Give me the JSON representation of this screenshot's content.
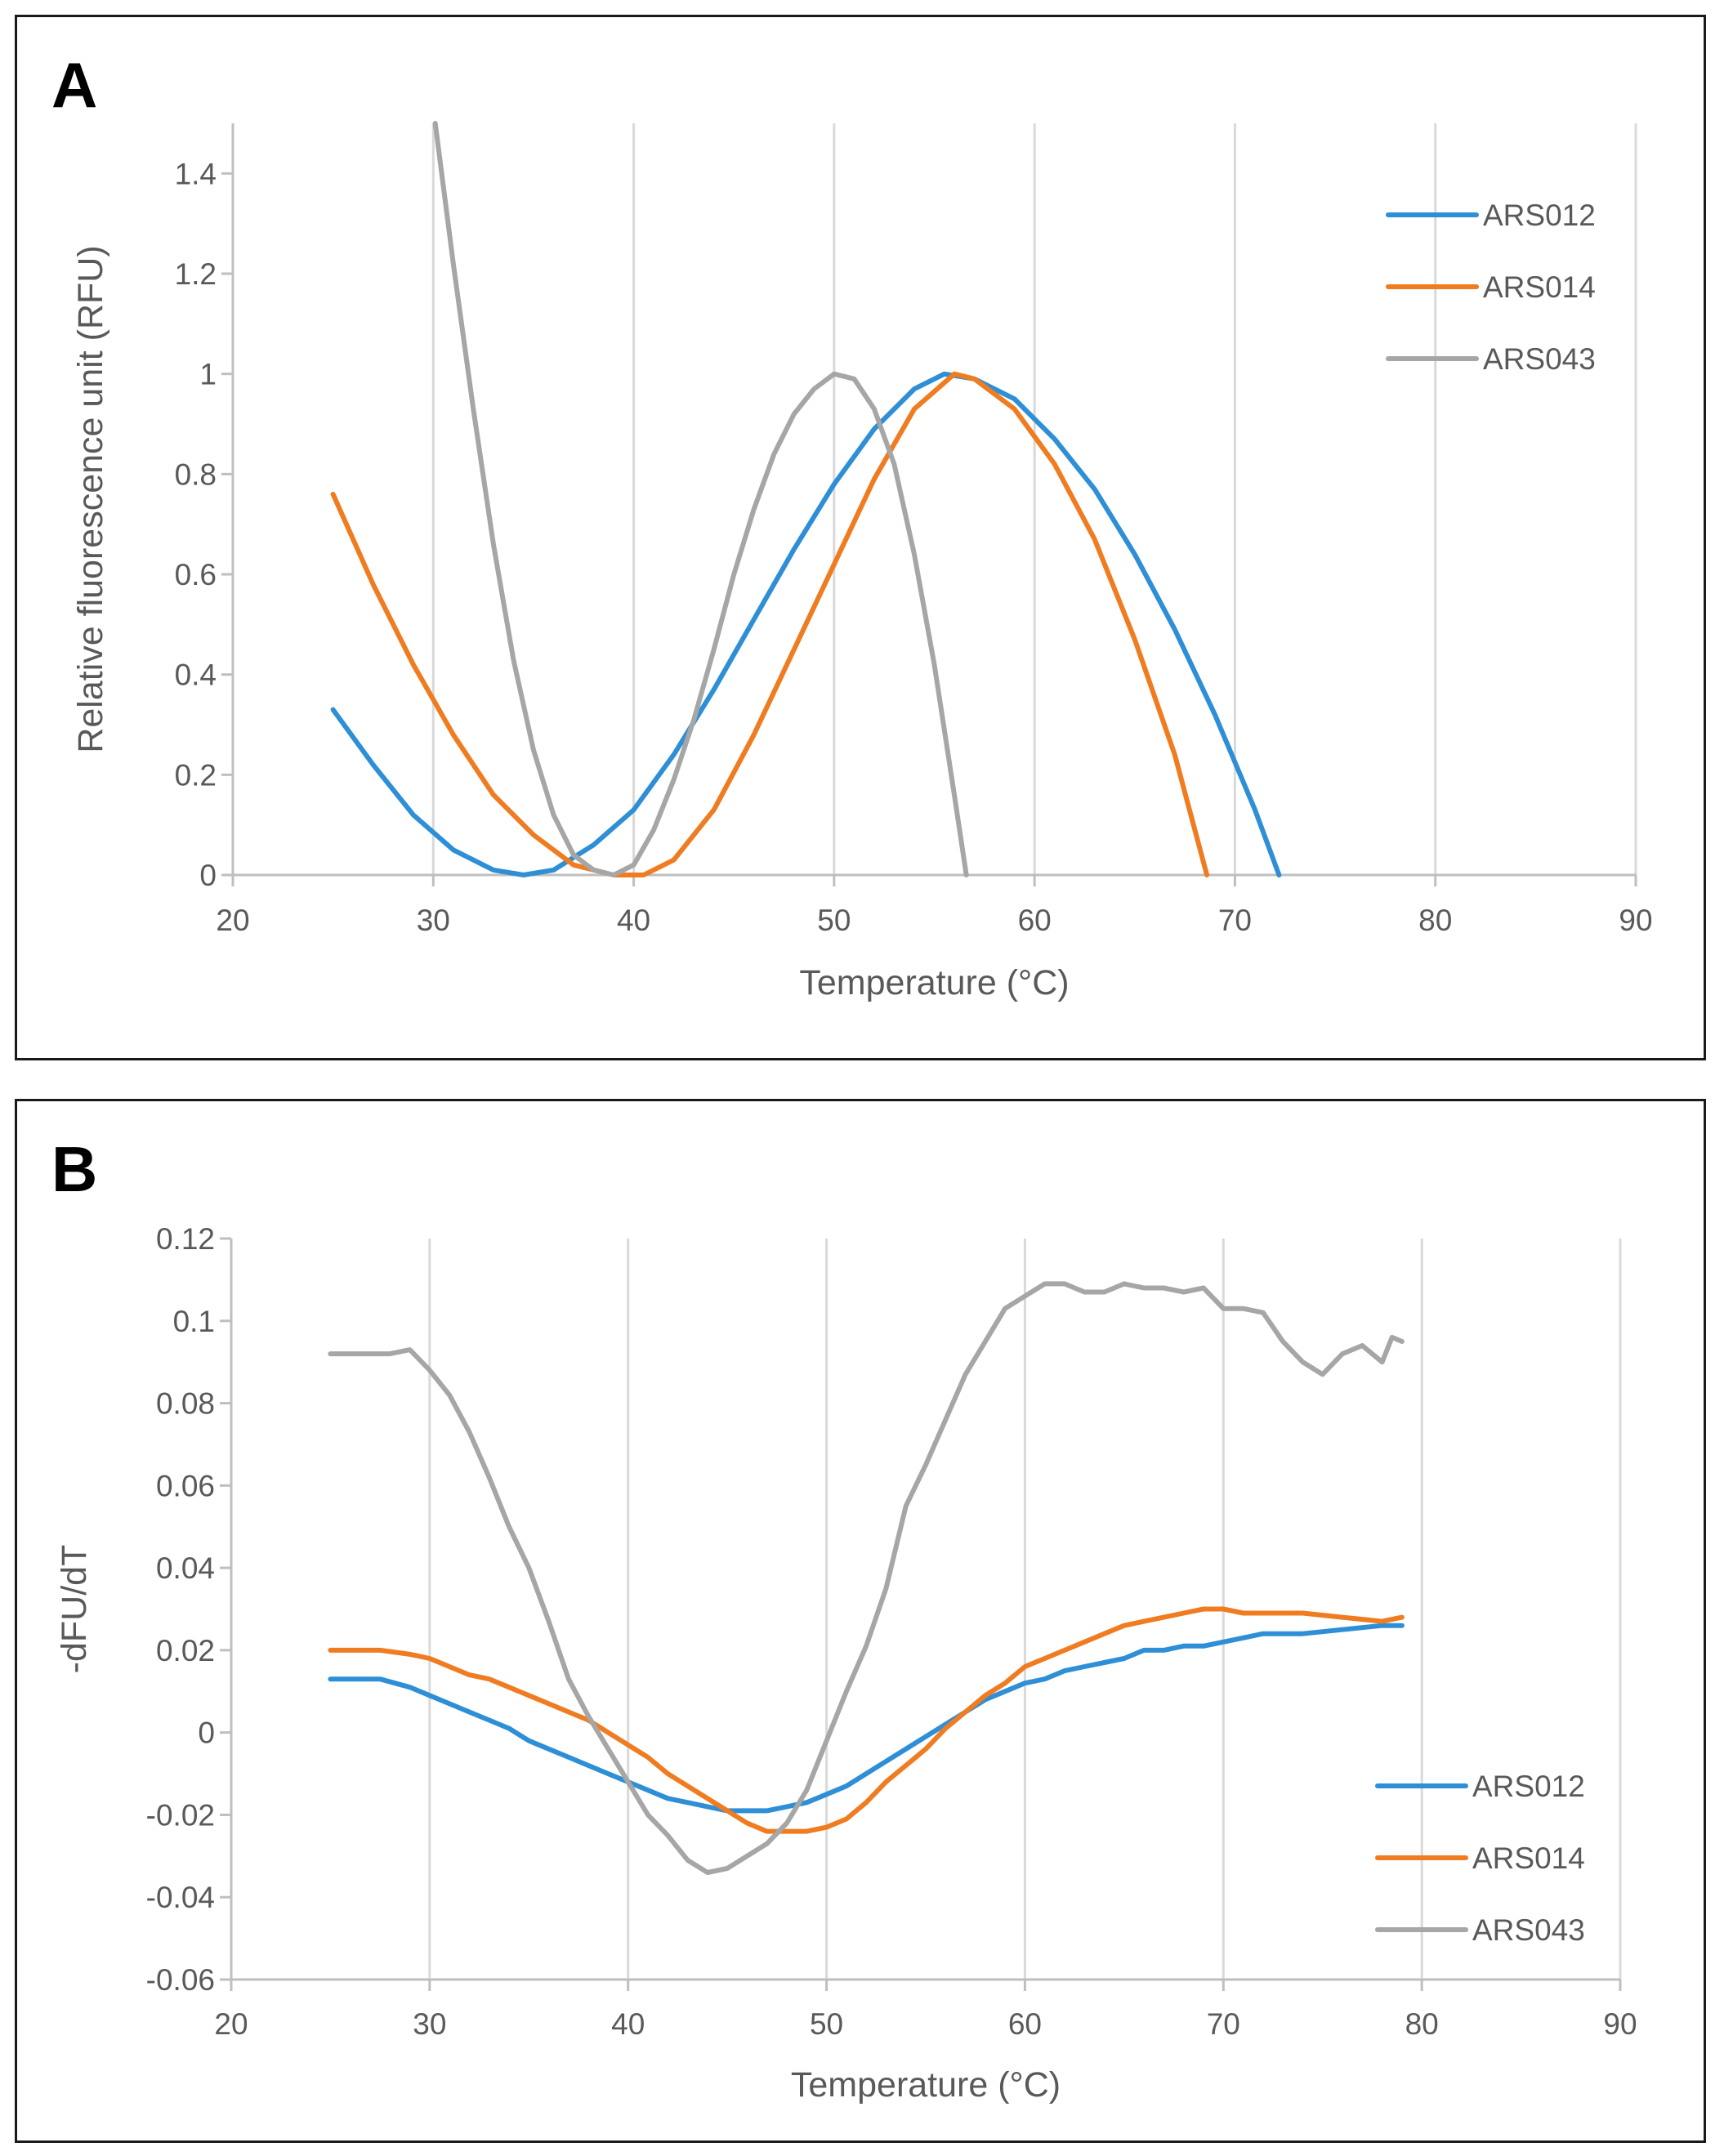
{
  "chart_data": [
    {
      "panel": "A",
      "type": "line",
      "title": "",
      "xlabel": "Temperature (°C)",
      "ylabel": "Relative fluorescence unit (RFU)",
      "xlim": [
        20,
        90
      ],
      "ylim": [
        0,
        1.5
      ],
      "xticks": [
        20,
        30,
        40,
        50,
        60,
        70,
        80,
        90
      ],
      "yticks": [
        0,
        0.2,
        0.4,
        0.6,
        0.8,
        1,
        1.2,
        1.4
      ],
      "grid": "vertical",
      "legend_position": "top-right",
      "series": [
        {
          "name": "ARS012",
          "color": "#2e8fd6",
          "points": [
            [
              25,
              0.33
            ],
            [
              27,
              0.22
            ],
            [
              29,
              0.12
            ],
            [
              31,
              0.05
            ],
            [
              33,
              0.01
            ],
            [
              34.5,
              0
            ],
            [
              36,
              0.01
            ],
            [
              38,
              0.06
            ],
            [
              40,
              0.13
            ],
            [
              42,
              0.24
            ],
            [
              44,
              0.37
            ],
            [
              46,
              0.51
            ],
            [
              48,
              0.65
            ],
            [
              50,
              0.78
            ],
            [
              52,
              0.89
            ],
            [
              54,
              0.97
            ],
            [
              55.5,
              1.0
            ],
            [
              57,
              0.99
            ],
            [
              59,
              0.95
            ],
            [
              61,
              0.87
            ],
            [
              63,
              0.77
            ],
            [
              65,
              0.64
            ],
            [
              67,
              0.49
            ],
            [
              69,
              0.32
            ],
            [
              71,
              0.13
            ],
            [
              72.2,
              0
            ]
          ]
        },
        {
          "name": "ARS014",
          "color": "#f07c21",
          "points": [
            [
              25,
              0.76
            ],
            [
              27,
              0.58
            ],
            [
              29,
              0.42
            ],
            [
              31,
              0.28
            ],
            [
              33,
              0.16
            ],
            [
              35,
              0.08
            ],
            [
              37,
              0.02
            ],
            [
              39,
              0
            ],
            [
              40.5,
              0
            ],
            [
              42,
              0.03
            ],
            [
              44,
              0.13
            ],
            [
              46,
              0.28
            ],
            [
              48,
              0.45
            ],
            [
              50,
              0.62
            ],
            [
              52,
              0.79
            ],
            [
              54,
              0.93
            ],
            [
              56,
              1.0
            ],
            [
              57,
              0.99
            ],
            [
              59,
              0.93
            ],
            [
              61,
              0.82
            ],
            [
              63,
              0.67
            ],
            [
              65,
              0.47
            ],
            [
              67,
              0.24
            ],
            [
              68.6,
              0
            ]
          ]
        },
        {
          "name": "ARS043",
          "color": "#a6a6a6",
          "points": [
            [
              30.1,
              1.5
            ],
            [
              31,
              1.22
            ],
            [
              32,
              0.93
            ],
            [
              33,
              0.66
            ],
            [
              34,
              0.43
            ],
            [
              35,
              0.25
            ],
            [
              36,
              0.12
            ],
            [
              37,
              0.04
            ],
            [
              38,
              0.01
            ],
            [
              39,
              0
            ],
            [
              40,
              0.02
            ],
            [
              41,
              0.09
            ],
            [
              42,
              0.19
            ],
            [
              43,
              0.31
            ],
            [
              44,
              0.45
            ],
            [
              45,
              0.6
            ],
            [
              46,
              0.73
            ],
            [
              47,
              0.84
            ],
            [
              48,
              0.92
            ],
            [
              49,
              0.97
            ],
            [
              50,
              1.0
            ],
            [
              51,
              0.99
            ],
            [
              52,
              0.93
            ],
            [
              53,
              0.82
            ],
            [
              54,
              0.64
            ],
            [
              55,
              0.42
            ],
            [
              56,
              0.16
            ],
            [
              56.6,
              0
            ]
          ]
        }
      ]
    },
    {
      "panel": "B",
      "type": "line",
      "title": "",
      "xlabel": "Temperature (°C)",
      "ylabel": "-dFU/dT",
      "xlim": [
        20,
        90
      ],
      "ylim": [
        -0.06,
        0.12
      ],
      "xticks": [
        20,
        30,
        40,
        50,
        60,
        70,
        80,
        90
      ],
      "yticks": [
        -0.06,
        -0.04,
        -0.02,
        0,
        0.02,
        0.04,
        0.06,
        0.08,
        0.1,
        0.12
      ],
      "grid": "vertical",
      "legend_position": "bottom-right",
      "series": [
        {
          "name": "ARS012",
          "color": "#2e8fd6",
          "points": [
            [
              25,
              0.013
            ],
            [
              27.5,
              0.013
            ],
            [
              29,
              0.011
            ],
            [
              30,
              0.009
            ],
            [
              31,
              0.007
            ],
            [
              32,
              0.005
            ],
            [
              33,
              0.003
            ],
            [
              34,
              0.001
            ],
            [
              35,
              -0.002
            ],
            [
              36,
              -0.004
            ],
            [
              37,
              -0.006
            ],
            [
              38,
              -0.008
            ],
            [
              39,
              -0.01
            ],
            [
              40,
              -0.012
            ],
            [
              41,
              -0.014
            ],
            [
              42,
              -0.016
            ],
            [
              43,
              -0.017
            ],
            [
              44,
              -0.018
            ],
            [
              45,
              -0.019
            ],
            [
              46,
              -0.019
            ],
            [
              47,
              -0.019
            ],
            [
              48,
              -0.018
            ],
            [
              49,
              -0.017
            ],
            [
              50,
              -0.015
            ],
            [
              51,
              -0.013
            ],
            [
              52,
              -0.01
            ],
            [
              53,
              -0.007
            ],
            [
              54,
              -0.004
            ],
            [
              55,
              -0.001
            ],
            [
              56,
              0.002
            ],
            [
              57,
              0.005
            ],
            [
              58,
              0.008
            ],
            [
              59,
              0.01
            ],
            [
              60,
              0.012
            ],
            [
              61,
              0.013
            ],
            [
              62,
              0.015
            ],
            [
              63,
              0.016
            ],
            [
              64,
              0.017
            ],
            [
              65,
              0.018
            ],
            [
              66,
              0.02
            ],
            [
              67,
              0.02
            ],
            [
              68,
              0.021
            ],
            [
              69,
              0.021
            ],
            [
              70,
              0.022
            ],
            [
              71,
              0.023
            ],
            [
              72,
              0.024
            ],
            [
              74,
              0.024
            ],
            [
              76,
              0.025
            ],
            [
              78,
              0.026
            ],
            [
              79,
              0.026
            ]
          ]
        },
        {
          "name": "ARS014",
          "color": "#f07c21",
          "points": [
            [
              25,
              0.02
            ],
            [
              27.5,
              0.02
            ],
            [
              29,
              0.019
            ],
            [
              30,
              0.018
            ],
            [
              31,
              0.016
            ],
            [
              32,
              0.014
            ],
            [
              33,
              0.013
            ],
            [
              34,
              0.011
            ],
            [
              35,
              0.009
            ],
            [
              36,
              0.007
            ],
            [
              37,
              0.005
            ],
            [
              38,
              0.003
            ],
            [
              39,
              0
            ],
            [
              40,
              -0.003
            ],
            [
              41,
              -0.006
            ],
            [
              42,
              -0.01
            ],
            [
              43,
              -0.013
            ],
            [
              44,
              -0.016
            ],
            [
              45,
              -0.019
            ],
            [
              46,
              -0.022
            ],
            [
              47,
              -0.024
            ],
            [
              48,
              -0.024
            ],
            [
              49,
              -0.024
            ],
            [
              50,
              -0.023
            ],
            [
              51,
              -0.021
            ],
            [
              52,
              -0.017
            ],
            [
              53,
              -0.012
            ],
            [
              54,
              -0.008
            ],
            [
              55,
              -0.004
            ],
            [
              56,
              0.001
            ],
            [
              57,
              0.005
            ],
            [
              58,
              0.009
            ],
            [
              59,
              0.012
            ],
            [
              60,
              0.016
            ],
            [
              61,
              0.018
            ],
            [
              62,
              0.02
            ],
            [
              63,
              0.022
            ],
            [
              64,
              0.024
            ],
            [
              65,
              0.026
            ],
            [
              66,
              0.027
            ],
            [
              67,
              0.028
            ],
            [
              68,
              0.029
            ],
            [
              69,
              0.03
            ],
            [
              70,
              0.03
            ],
            [
              71,
              0.029
            ],
            [
              72,
              0.029
            ],
            [
              74,
              0.029
            ],
            [
              76,
              0.028
            ],
            [
              78,
              0.027
            ],
            [
              79,
              0.028
            ]
          ]
        },
        {
          "name": "ARS043",
          "color": "#a6a6a6",
          "points": [
            [
              25,
              0.092
            ],
            [
              28,
              0.092
            ],
            [
              29,
              0.093
            ],
            [
              30,
              0.088
            ],
            [
              31,
              0.082
            ],
            [
              32,
              0.073
            ],
            [
              33,
              0.062
            ],
            [
              34,
              0.05
            ],
            [
              35,
              0.04
            ],
            [
              36,
              0.027
            ],
            [
              37,
              0.013
            ],
            [
              38,
              0.004
            ],
            [
              39,
              -0.004
            ],
            [
              40,
              -0.012
            ],
            [
              41,
              -0.02
            ],
            [
              42,
              -0.025
            ],
            [
              43,
              -0.031
            ],
            [
              44,
              -0.034
            ],
            [
              45,
              -0.033
            ],
            [
              46,
              -0.03
            ],
            [
              47,
              -0.027
            ],
            [
              48,
              -0.022
            ],
            [
              49,
              -0.014
            ],
            [
              50,
              -0.002
            ],
            [
              51,
              0.01
            ],
            [
              52,
              0.021
            ],
            [
              53,
              0.035
            ],
            [
              54,
              0.055
            ],
            [
              55,
              0.065
            ],
            [
              56,
              0.076
            ],
            [
              57,
              0.087
            ],
            [
              58,
              0.095
            ],
            [
              59,
              0.103
            ],
            [
              60,
              0.106
            ],
            [
              61,
              0.109
            ],
            [
              62,
              0.109
            ],
            [
              63,
              0.107
            ],
            [
              64,
              0.107
            ],
            [
              65,
              0.109
            ],
            [
              66,
              0.108
            ],
            [
              67,
              0.108
            ],
            [
              68,
              0.107
            ],
            [
              69,
              0.108
            ],
            [
              70,
              0.103
            ],
            [
              71,
              0.103
            ],
            [
              72,
              0.102
            ],
            [
              73,
              0.095
            ],
            [
              74,
              0.09
            ],
            [
              75,
              0.087
            ],
            [
              76,
              0.092
            ],
            [
              77,
              0.094
            ],
            [
              78,
              0.09
            ],
            [
              78.5,
              0.096
            ],
            [
              79,
              0.095
            ]
          ]
        }
      ]
    }
  ]
}
